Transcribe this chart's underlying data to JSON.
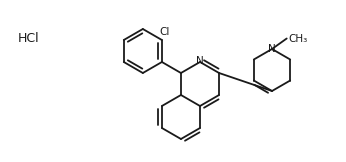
{
  "background": "#ffffff",
  "bond_color": "#1a1a1a",
  "text_color": "#1a1a1a",
  "bond_lw": 1.3,
  "fig_width": 3.46,
  "fig_height": 1.62,
  "dpi": 100,
  "hcl_text": "HCl",
  "cl_text": "Cl",
  "n_text": "N",
  "n2_text": "N",
  "ch3_text": "CH₃"
}
